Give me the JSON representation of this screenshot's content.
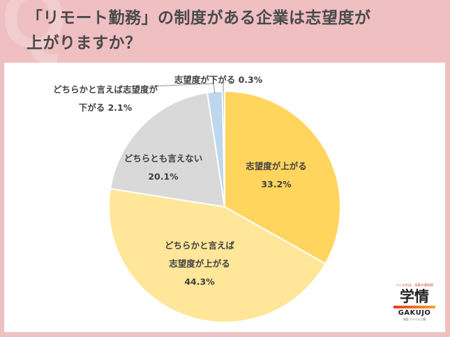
{
  "header": {
    "q_mark": "Q",
    "title_line1": "「リモート勤務」の制度がある企業は志望度が",
    "title_line2": "上がりますか？"
  },
  "chart_data": {
    "type": "pie",
    "title": "「リモート勤務」の制度がある企業は志望度が上がりますか？",
    "start_angle": "12 o'clock, clockwise",
    "slices": [
      {
        "label": "志望度が上がる",
        "value": 33.2,
        "color": "#ffd55e"
      },
      {
        "label": "どちらかと言えば志望度が上がる",
        "value": 44.3,
        "color": "#ffe699"
      },
      {
        "label": "どちらとも言えない",
        "value": 20.1,
        "color": "#d9d9d9"
      },
      {
        "label": "どちらかと言えば志望度が下がる",
        "value": 2.1,
        "color": "#bdd7ee"
      },
      {
        "label": "志望度が下がる",
        "value": 0.3,
        "color": "#9dc3e6"
      }
    ],
    "legend": "none (labels on slices)"
  },
  "labels": {
    "up": {
      "line1": "志望度が上がる",
      "line2": "33.2%"
    },
    "rather_up": {
      "line1": "どちらかと言えば",
      "line2": "志望度が上がる",
      "line3": "44.3%"
    },
    "neutral": {
      "line1": "どちらとも言えない",
      "line2": "20.1%"
    },
    "rather_down": {
      "line1": "どちらかと言えば志望度が",
      "line2": "下がる 2.1%"
    },
    "down": {
      "line1": "志望度が下がる 0.3%"
    }
  },
  "logo": {
    "tagline": "つくるのは、未来の選択肢",
    "kanji": "学情",
    "english": "GAKUJO",
    "sub": "東証プライム上場"
  }
}
